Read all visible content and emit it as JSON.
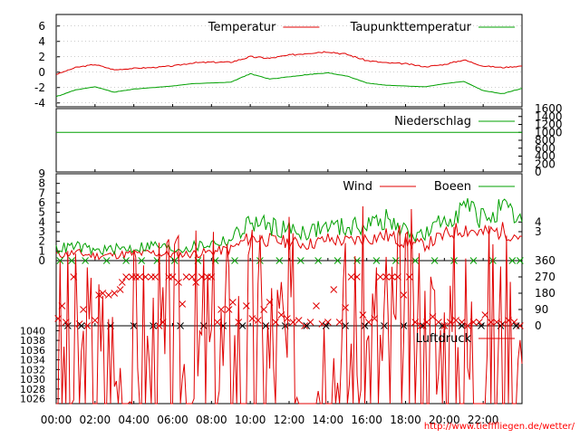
{
  "credit": "http://www.tiefffliegen.de/wetter/",
  "colors": {
    "red": "#e00000",
    "green": "#00a000",
    "frame": "#000000"
  },
  "chart_data": [
    {
      "type": "line",
      "panel": "temperature",
      "x_ticks": [
        "00:00",
        "02:00",
        "04:00",
        "06:00",
        "08:00",
        "10:00",
        "12:00",
        "14:00",
        "16:00",
        "18:00",
        "20:00",
        "22:00"
      ],
      "ylim": [
        -4.5,
        7.5
      ],
      "y_ticks": [
        "6",
        "4",
        "2",
        "0",
        "-2",
        "-4"
      ],
      "grid": true,
      "legend_position": "top-right",
      "series": [
        {
          "name": "Temperatur",
          "color": "red",
          "x": [
            0,
            1,
            2,
            3,
            4,
            5,
            6,
            7,
            8,
            9,
            10,
            11,
            12,
            13,
            14,
            15,
            16,
            17,
            18,
            19,
            20,
            21,
            22,
            23,
            24
          ],
          "values": [
            -0.3,
            0.6,
            1.0,
            0.3,
            0.5,
            0.6,
            0.8,
            1.2,
            1.3,
            1.3,
            2.0,
            1.8,
            2.2,
            2.5,
            2.7,
            2.3,
            1.5,
            1.2,
            1.1,
            0.7,
            1.0,
            1.6,
            0.8,
            0.6,
            0.8
          ]
        },
        {
          "name": "Taupunkttemperatur",
          "color": "green",
          "x": [
            0,
            1,
            2,
            3,
            4,
            5,
            6,
            7,
            8,
            9,
            10,
            11,
            12,
            13,
            14,
            15,
            16,
            17,
            18,
            19,
            20,
            21,
            22,
            23,
            24
          ],
          "values": [
            -3.2,
            -2.3,
            -1.9,
            -2.6,
            -2.2,
            -2.0,
            -1.8,
            -1.5,
            -1.4,
            -1.3,
            -0.2,
            -0.9,
            -0.6,
            -0.3,
            -0.1,
            -0.5,
            -1.4,
            -1.7,
            -1.8,
            -1.9,
            -1.5,
            -1.2,
            -2.4,
            -2.8,
            -2.1
          ]
        }
      ]
    },
    {
      "type": "line",
      "panel": "precipitation",
      "ylim": [
        0,
        1600
      ],
      "y_ticks_right": [
        "1600",
        "1400",
        "1200",
        "1000",
        "800",
        "600",
        "400",
        "200",
        "0"
      ],
      "series": [
        {
          "name": "Niederschlag",
          "color": "green",
          "x": [
            0,
            24
          ],
          "values": [
            1000,
            1000
          ]
        }
      ]
    },
    {
      "type": "line",
      "panel": "wind",
      "ylim": [
        0,
        9
      ],
      "y_ticks": [
        "9",
        "8",
        "7",
        "6",
        "5",
        "4",
        "3",
        "2",
        "1",
        "0"
      ],
      "y_ticks_right": [
        "4",
        "3"
      ],
      "legend_position": "top-right",
      "series": [
        {
          "name": "Wind",
          "color": "red",
          "x": [
            0,
            1,
            2,
            3,
            4,
            5,
            6,
            7,
            8,
            9,
            10,
            11,
            12,
            13,
            14,
            15,
            16,
            17,
            18,
            19,
            20,
            21,
            22,
            23,
            24
          ],
          "values": [
            0.6,
            0.8,
            0.5,
            0.6,
            0.7,
            0.8,
            0.6,
            0.7,
            0.9,
            1.2,
            2.4,
            2.1,
            1.9,
            1.7,
            2.2,
            2.0,
            2.3,
            2.6,
            1.9,
            1.6,
            2.6,
            3.4,
            2.8,
            3.1,
            2.5
          ]
        },
        {
          "name": "Boeen",
          "color": "green",
          "x": [
            0,
            1,
            2,
            3,
            4,
            5,
            6,
            7,
            8,
            9,
            10,
            11,
            12,
            13,
            14,
            15,
            16,
            17,
            18,
            19,
            20,
            21,
            22,
            23,
            24
          ],
          "values": [
            1.2,
            1.5,
            1.0,
            1.2,
            1.3,
            1.6,
            1.2,
            1.4,
            1.8,
            2.2,
            4.0,
            3.6,
            3.2,
            3.0,
            3.6,
            3.4,
            3.8,
            4.2,
            3.0,
            2.6,
            4.2,
            5.6,
            4.4,
            5.2,
            4.0
          ]
        }
      ]
    },
    {
      "type": "scatter",
      "panel": "wind_direction",
      "ylim": [
        0,
        360
      ],
      "y_ticks_right": [
        "360",
        "270",
        "180",
        "90",
        "0"
      ],
      "series": [
        {
          "color": "red",
          "x": [
            0.1,
            0.3,
            0.5,
            0.9,
            1.2,
            1.4,
            1.6,
            2.0,
            2.2,
            2.4,
            2.7,
            3.0,
            3.3,
            3.4,
            3.6,
            3.9,
            4.1,
            4.3,
            4.6,
            4.9,
            5.1,
            5.3,
            5.5,
            5.8,
            6.0,
            6.3,
            6.5,
            6.7,
            7.0,
            7.2,
            7.5,
            7.8,
            8.0,
            8.3,
            8.5,
            8.9,
            9.1,
            9.4,
            9.8,
            10.1,
            10.4,
            10.7,
            11.0,
            11.3,
            11.6,
            11.9,
            12.2,
            12.5,
            12.8,
            13.1,
            13.4,
            13.7,
            14.0,
            14.3,
            14.6,
            14.9,
            15.2,
            15.5,
            15.8,
            16.1,
            16.4,
            16.7,
            17.0,
            17.3,
            17.6,
            17.9,
            18.2,
            18.5,
            18.8,
            19.1,
            19.4,
            19.7,
            20.0,
            20.3,
            20.6,
            20.9,
            21.2,
            21.5,
            21.8,
            22.1,
            22.4,
            22.7,
            23.0,
            23.3,
            23.6,
            23.9
          ],
          "values": [
            40,
            110,
            20,
            270,
            10,
            90,
            0,
            30,
            170,
            180,
            170,
            180,
            200,
            240,
            270,
            270,
            270,
            270,
            270,
            270,
            270,
            0,
            20,
            270,
            270,
            240,
            120,
            270,
            270,
            240,
            270,
            270,
            270,
            20,
            90,
            90,
            130,
            20,
            110,
            40,
            30,
            90,
            130,
            20,
            60,
            40,
            20,
            30,
            0,
            20,
            110,
            10,
            20,
            200,
            20,
            100,
            270,
            270,
            60,
            20,
            40,
            270,
            270,
            270,
            270,
            170,
            270,
            20,
            0,
            20,
            50,
            20,
            0,
            20,
            30,
            20,
            0,
            20,
            20,
            60,
            20,
            20,
            10,
            30,
            20,
            0
          ]
        },
        {
          "color": "green",
          "x": [
            0.2,
            0.8,
            1.5,
            2.6,
            3.6,
            4.4,
            5.2,
            6.1,
            7.3,
            8.2,
            9.2,
            10.5,
            11.5,
            12.6,
            13.5,
            14.5,
            15.5,
            16.5,
            17.5,
            18.5,
            19.5,
            20.5,
            21.5,
            22.5,
            23.5,
            23.9
          ],
          "values": [
            360,
            360,
            360,
            360,
            360,
            360,
            360,
            360,
            360,
            360,
            360,
            360,
            360,
            360,
            360,
            360,
            360,
            360,
            360,
            360,
            360,
            360,
            360,
            360,
            360,
            360
          ]
        },
        {
          "color": "black",
          "x": [
            0.6,
            1.3,
            2.8,
            4.0,
            5.0,
            6.4,
            7.6,
            8.6,
            9.6,
            10.8,
            11.8,
            12.9,
            13.9,
            14.9,
            15.9,
            16.9,
            17.9,
            18.9,
            19.9,
            20.9,
            21.9,
            22.9,
            23.7
          ],
          "values": [
            0,
            0,
            0,
            0,
            0,
            0,
            0,
            0,
            0,
            0,
            0,
            0,
            0,
            0,
            0,
            0,
            0,
            0,
            0,
            0,
            0,
            0,
            0
          ]
        }
      ]
    },
    {
      "type": "line",
      "panel": "pressure",
      "ylim": [
        1025,
        1041
      ],
      "y_ticks": [
        "1040",
        "1038",
        "1036",
        "1034",
        "1032",
        "1030",
        "1028",
        "1026"
      ],
      "legend_position": "top-right",
      "series": [
        {
          "name": "Luftdruck",
          "color": "red",
          "x": [
            0,
            1,
            2,
            3,
            4,
            5,
            6,
            7,
            8,
            9,
            10,
            11,
            12,
            13,
            14,
            15,
            16,
            17,
            18,
            19,
            20,
            21,
            22,
            23,
            24
          ],
          "values": [
            1026.3,
            1026.9,
            1027.6,
            1028.1,
            1028.5,
            1029.1,
            1029.8,
            1030.6,
            1031.3,
            1032.0,
            1032.6,
            1032.7,
            1032.6,
            1032.5,
            1032.8,
            1033.0,
            1033.3,
            1033.2,
            1033.3,
            1033.1,
            1033.0,
            1033.2,
            1033.3,
            1033.3,
            1033.2
          ]
        }
      ]
    }
  ]
}
